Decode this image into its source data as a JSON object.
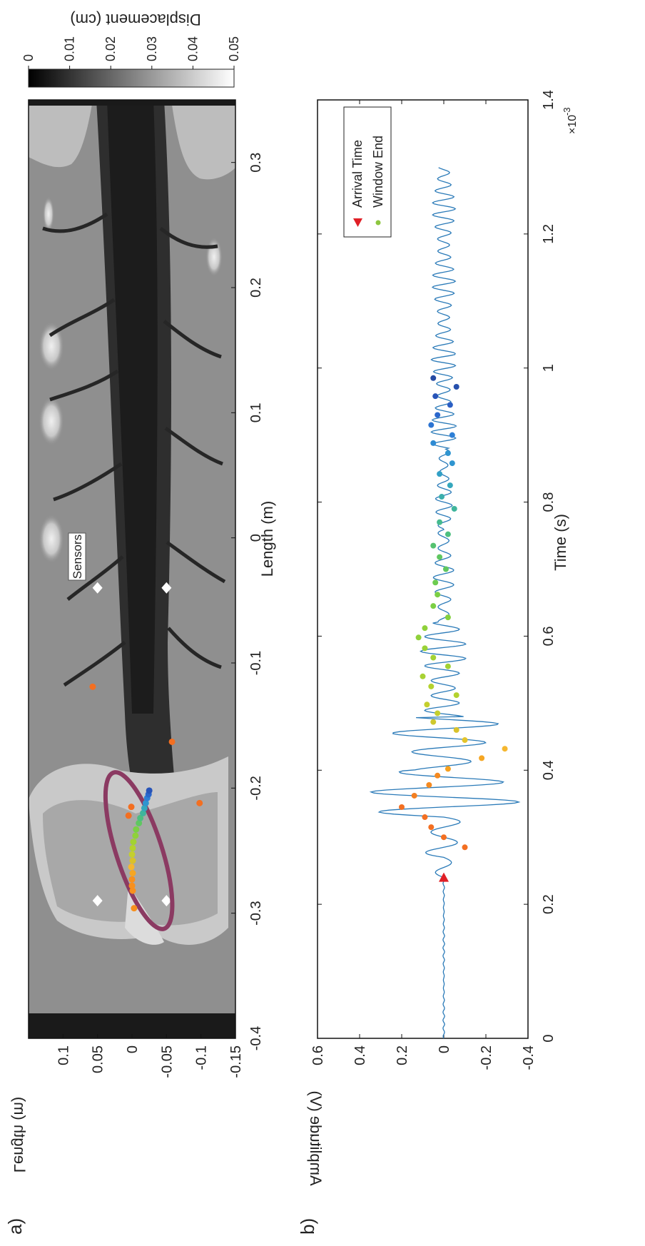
{
  "panels": {
    "a": {
      "label": "a)",
      "xlabel": "Length (m)",
      "ylabel": "Length (m)",
      "xlim": [
        -0.4,
        0.35
      ],
      "ylim": [
        -0.15,
        0.15
      ],
      "xticks": [
        "-0.4",
        "-0.3",
        "-0.2",
        "-0.1",
        "0",
        "0.1",
        "0.2",
        "0.3"
      ],
      "yticks": [
        "-0.15",
        "-0.1",
        "-0.05",
        "0",
        "0.05",
        "0.1"
      ],
      "colorbar": {
        "label": "Displacement (cm)",
        "range": [
          0,
          0.05
        ],
        "ticks": [
          "0",
          "0.01",
          "0.02",
          "0.03",
          "0.04",
          "0.05"
        ],
        "colormap": "grayscale"
      },
      "annotation": "Sensors",
      "sensors": [
        {
          "x": -0.29,
          "y": 0.05
        },
        {
          "x": -0.29,
          "y": -0.05
        },
        {
          "x": -0.04,
          "y": 0.05
        },
        {
          "x": -0.04,
          "y": -0.05
        }
      ],
      "ellipse_color": "#8b3a62",
      "event_points": [
        {
          "x": -0.296,
          "y": -0.003,
          "color": "#f7901e"
        },
        {
          "x": -0.282,
          "y": -0.001,
          "color": "#f7901e"
        },
        {
          "x": -0.278,
          "y": 0.0,
          "color": "#f7901e"
        },
        {
          "x": -0.273,
          "y": 0.0,
          "color": "#f7901e"
        },
        {
          "x": -0.268,
          "y": -0.001,
          "color": "#f5a623"
        },
        {
          "x": -0.263,
          "y": 0.001,
          "color": "#f5b730"
        },
        {
          "x": -0.258,
          "y": -0.001,
          "color": "#d9c22b"
        },
        {
          "x": -0.253,
          "y": 0.0,
          "color": "#c4cf2e"
        },
        {
          "x": -0.248,
          "y": -0.001,
          "color": "#b4d22e"
        },
        {
          "x": -0.243,
          "y": -0.002,
          "color": "#a2d233"
        },
        {
          "x": -0.238,
          "y": -0.005,
          "color": "#8fd13a"
        },
        {
          "x": -0.233,
          "y": -0.006,
          "color": "#7bcf45"
        },
        {
          "x": -0.228,
          "y": -0.01,
          "color": "#5fc760"
        },
        {
          "x": -0.224,
          "y": -0.012,
          "color": "#4dbf80"
        },
        {
          "x": -0.22,
          "y": -0.016,
          "color": "#3fb59c"
        },
        {
          "x": -0.216,
          "y": -0.018,
          "color": "#35a7bd"
        },
        {
          "x": -0.212,
          "y": -0.02,
          "color": "#2f95d0"
        },
        {
          "x": -0.208,
          "y": -0.022,
          "color": "#2d7fd6"
        },
        {
          "x": -0.205,
          "y": -0.024,
          "color": "#2a67cc"
        },
        {
          "x": -0.202,
          "y": -0.025,
          "color": "#2754b8"
        },
        {
          "x": -0.222,
          "y": 0.005,
          "color": "#f36f21"
        },
        {
          "x": -0.215,
          "y": 0.001,
          "color": "#f36f21"
        },
        {
          "x": -0.212,
          "y": -0.098,
          "color": "#f36f21"
        },
        {
          "x": -0.163,
          "y": -0.058,
          "color": "#f36f21"
        },
        {
          "x": -0.119,
          "y": 0.057,
          "color": "#f36f21"
        }
      ]
    },
    "b": {
      "label": "b)",
      "xlabel": "Time (s)",
      "ylabel": "Amplitude (V)",
      "xscale_label": "×10",
      "xscale_exp": "-3",
      "xlim": [
        0,
        1.4
      ],
      "ylim": [
        -0.4,
        0.6
      ],
      "xticks": [
        "0",
        "0.2",
        "0.4",
        "0.6",
        "0.8",
        "1",
        "1.2",
        "1.4"
      ],
      "yticks": [
        "-0.4",
        "-0.2",
        "0",
        "0.2",
        "0.4",
        "0.6"
      ],
      "line_color": "#2a7ab8",
      "legend": [
        {
          "label": "Arrival Time",
          "color": "#e01f26",
          "marker": "triangle"
        },
        {
          "label": "Window End",
          "color": "#8dc63f",
          "marker": "circle"
        }
      ],
      "arrival": {
        "x": 0.24,
        "y": 0.0,
        "color": "#e01f26"
      },
      "waveform": {
        "segments": [
          {
            "t0": 0.0,
            "t1": 0.24,
            "amp": 0.004,
            "period": 0.012,
            "decay": 0
          },
          {
            "t0": 0.24,
            "t1": 0.27,
            "amp": 0.04,
            "period": 0.03,
            "decay": 0
          },
          {
            "t0": 0.27,
            "t1": 0.33,
            "amp": 0.12,
            "period": 0.03,
            "decay": 0
          },
          {
            "t0": 0.33,
            "t1": 0.4,
            "amp": 0.36,
            "period": 0.03,
            "decay": 0
          },
          {
            "t0": 0.4,
            "t1": 0.48,
            "amp": 0.26,
            "period": 0.028,
            "decay": 0
          },
          {
            "t0": 0.48,
            "t1": 0.62,
            "amp": 0.11,
            "period": 0.022,
            "decay": 0
          },
          {
            "t0": 0.62,
            "t1": 0.76,
            "amp": 0.05,
            "period": 0.022,
            "decay": 0
          },
          {
            "t0": 0.76,
            "t1": 0.88,
            "amp": 0.04,
            "period": 0.02,
            "decay": 0
          },
          {
            "t0": 0.88,
            "t1": 1.02,
            "amp": 0.06,
            "period": 0.018,
            "decay": 0
          },
          {
            "t0": 1.02,
            "t1": 1.3,
            "amp": 0.055,
            "period": 0.018,
            "decay": 0
          }
        ]
      },
      "points": [
        {
          "x": 0.285,
          "y": -0.1,
          "color": "#f36f21"
        },
        {
          "x": 0.3,
          "y": 0.0,
          "color": "#f36f21"
        },
        {
          "x": 0.315,
          "y": 0.06,
          "color": "#f36f21"
        },
        {
          "x": 0.33,
          "y": 0.09,
          "color": "#f36f21"
        },
        {
          "x": 0.345,
          "y": 0.2,
          "color": "#f36f21"
        },
        {
          "x": 0.362,
          "y": 0.14,
          "color": "#f37f21"
        },
        {
          "x": 0.378,
          "y": 0.07,
          "color": "#f58a21"
        },
        {
          "x": 0.392,
          "y": 0.03,
          "color": "#f58a21"
        },
        {
          "x": 0.402,
          "y": -0.02,
          "color": "#f7a01e"
        },
        {
          "x": 0.418,
          "y": -0.18,
          "color": "#f5a623"
        },
        {
          "x": 0.432,
          "y": -0.29,
          "color": "#f5b730"
        },
        {
          "x": 0.445,
          "y": -0.1,
          "color": "#e4c42b"
        },
        {
          "x": 0.46,
          "y": -0.06,
          "color": "#d9c22b"
        },
        {
          "x": 0.472,
          "y": 0.05,
          "color": "#cfc82d"
        },
        {
          "x": 0.485,
          "y": 0.03,
          "color": "#c4cf2e"
        },
        {
          "x": 0.498,
          "y": 0.08,
          "color": "#c4cf2e"
        },
        {
          "x": 0.512,
          "y": -0.06,
          "color": "#b4d22e"
        },
        {
          "x": 0.525,
          "y": 0.06,
          "color": "#b4d22e"
        },
        {
          "x": 0.54,
          "y": 0.1,
          "color": "#a8d233"
        },
        {
          "x": 0.555,
          "y": -0.02,
          "color": "#a2d233"
        },
        {
          "x": 0.568,
          "y": 0.05,
          "color": "#a2d233"
        },
        {
          "x": 0.582,
          "y": 0.09,
          "color": "#9ad236"
        },
        {
          "x": 0.598,
          "y": 0.12,
          "color": "#8fd13a"
        },
        {
          "x": 0.612,
          "y": 0.09,
          "color": "#8fd13a"
        },
        {
          "x": 0.628,
          "y": -0.02,
          "color": "#84d03f"
        },
        {
          "x": 0.645,
          "y": 0.05,
          "color": "#7bcf45"
        },
        {
          "x": 0.662,
          "y": 0.03,
          "color": "#7bcf45"
        },
        {
          "x": 0.68,
          "y": 0.04,
          "color": "#6ccc50"
        },
        {
          "x": 0.7,
          "y": -0.01,
          "color": "#5fc760"
        },
        {
          "x": 0.718,
          "y": 0.02,
          "color": "#5fc760"
        },
        {
          "x": 0.735,
          "y": 0.05,
          "color": "#55c270"
        },
        {
          "x": 0.752,
          "y": -0.02,
          "color": "#4dbf80"
        },
        {
          "x": 0.77,
          "y": 0.02,
          "color": "#45ba8e"
        },
        {
          "x": 0.79,
          "y": -0.05,
          "color": "#3fb59c"
        },
        {
          "x": 0.808,
          "y": 0.01,
          "color": "#3aaeac"
        },
        {
          "x": 0.825,
          "y": -0.03,
          "color": "#35a7bd"
        },
        {
          "x": 0.842,
          "y": 0.02,
          "color": "#32a0c6"
        },
        {
          "x": 0.858,
          "y": -0.04,
          "color": "#2f95d0"
        },
        {
          "x": 0.873,
          "y": -0.02,
          "color": "#2f95d0"
        },
        {
          "x": 0.888,
          "y": 0.05,
          "color": "#2d8ad3"
        },
        {
          "x": 0.9,
          "y": -0.04,
          "color": "#2d7fd6"
        },
        {
          "x": 0.915,
          "y": 0.06,
          "color": "#2c74d2"
        },
        {
          "x": 0.93,
          "y": 0.03,
          "color": "#2a67cc"
        },
        {
          "x": 0.945,
          "y": -0.03,
          "color": "#2a5ec4"
        },
        {
          "x": 0.958,
          "y": 0.04,
          "color": "#2754b8"
        },
        {
          "x": 0.972,
          "y": -0.06,
          "color": "#2650ad"
        },
        {
          "x": 0.985,
          "y": 0.05,
          "color": "#244aa3"
        }
      ]
    }
  }
}
